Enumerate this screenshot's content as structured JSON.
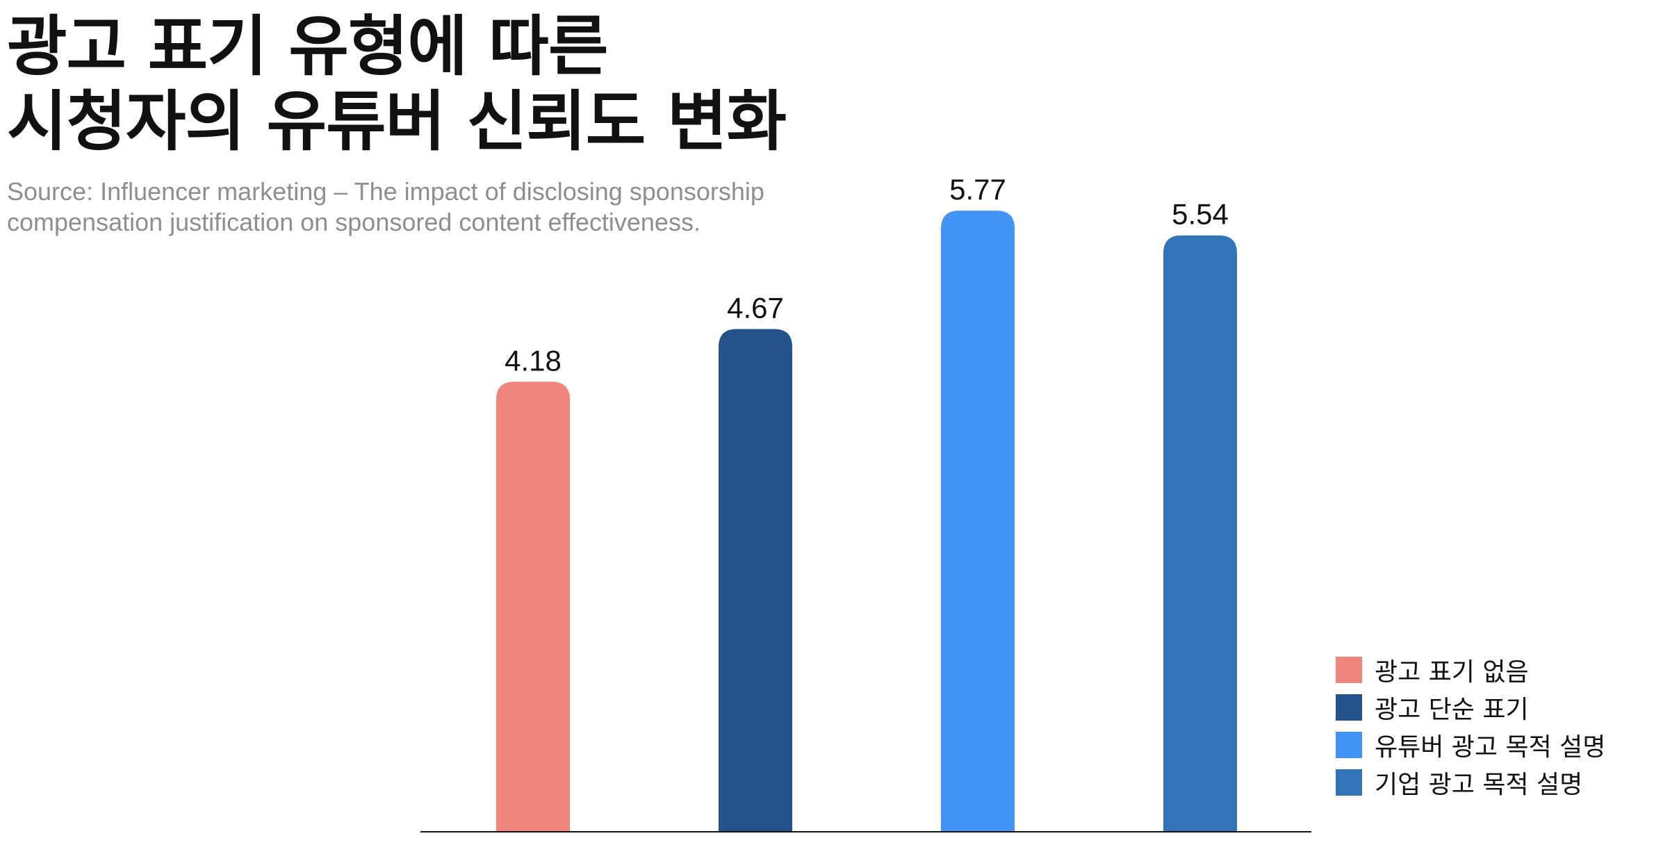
{
  "title_lines": [
    "광고 표기 유형에 따른",
    "시청자의 유튜버 신뢰도 변화"
  ],
  "source_text": "Source: Influencer marketing – The impact of disclosing sponsorship compensation justification on sponsored content effectiveness.",
  "chart_data": {
    "type": "bar",
    "title": "광고 표기 유형에 따른 시청자의 유튜버 신뢰도 변화",
    "categories": [
      "광고 표기 없음",
      "광고 단순 표기",
      "유튜버 광고 목적 설명",
      "기업 광고 목적 설명"
    ],
    "values": [
      4.18,
      4.67,
      5.77,
      5.54
    ],
    "value_labels": [
      "4.18",
      "4.67",
      "5.77",
      "5.54"
    ],
    "colors": [
      "#EF857B",
      "#23528C",
      "#4395F5",
      "#3373B8"
    ],
    "ylim": [
      0,
      6.5
    ],
    "grid": false,
    "legend": "bottom-right",
    "xlabel": "",
    "ylabel": ""
  }
}
